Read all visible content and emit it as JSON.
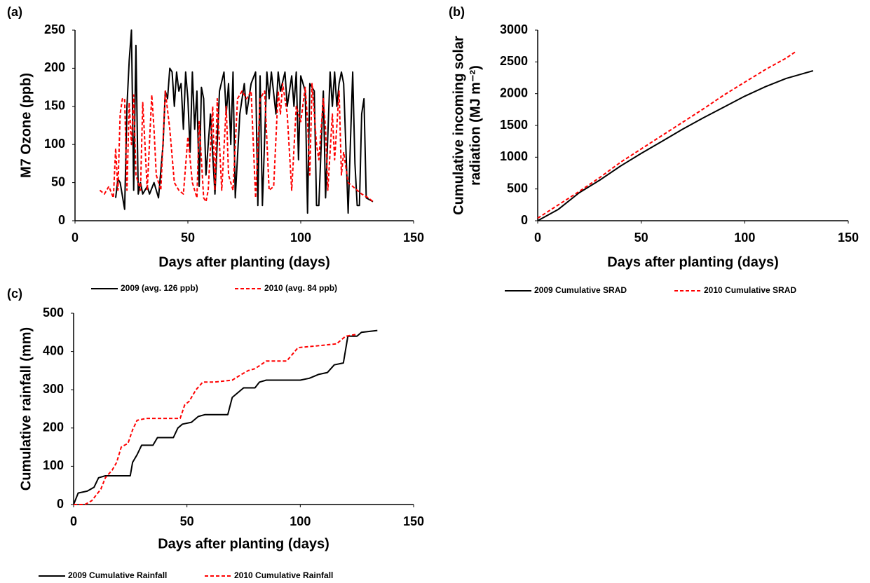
{
  "chart_data": [
    {
      "type": "line",
      "panel_label": "(a)",
      "xlabel": "Days after planting (days)",
      "ylabel": [
        "M7 Ozone (ppb)"
      ],
      "xlim": [
        0,
        150
      ],
      "xticks": [
        0,
        50,
        100,
        150
      ],
      "ylim": [
        0,
        250
      ],
      "yticks": [
        0,
        50,
        100,
        150,
        200,
        250
      ],
      "series": [
        {
          "name": "2009 (avg. 126 ppb)",
          "color": "#000000",
          "dashed": false,
          "x": [
            18,
            19,
            20,
            22,
            23,
            24,
            25,
            26,
            27,
            28,
            29,
            30,
            31,
            32,
            33,
            35,
            37,
            39,
            40,
            41,
            42,
            43,
            44,
            45,
            46,
            47,
            48,
            49,
            50,
            51,
            52,
            53,
            54,
            55,
            56,
            57,
            58,
            60,
            62,
            64,
            66,
            67,
            68,
            69,
            70,
            71,
            73,
            75,
            76,
            78,
            80,
            81,
            82,
            83,
            85,
            86,
            87,
            89,
            90,
            91,
            93,
            94,
            96,
            97,
            98,
            99,
            100,
            102,
            103,
            104,
            106,
            107,
            108,
            110,
            111,
            113,
            114,
            115,
            116,
            117,
            118,
            119,
            121,
            123,
            124,
            125,
            126,
            127,
            128,
            129,
            132
          ],
          "values": [
            30,
            55,
            50,
            15,
            150,
            210,
            250,
            40,
            230,
            35,
            50,
            35,
            40,
            45,
            35,
            50,
            30,
            100,
            170,
            160,
            200,
            195,
            150,
            195,
            170,
            180,
            120,
            195,
            160,
            90,
            195,
            120,
            170,
            45,
            175,
            160,
            60,
            140,
            35,
            170,
            195,
            140,
            180,
            100,
            195,
            30,
            140,
            180,
            140,
            180,
            195,
            20,
            190,
            20,
            195,
            160,
            195,
            140,
            195,
            170,
            195,
            150,
            190,
            150,
            195,
            80,
            190,
            170,
            10,
            180,
            170,
            20,
            20,
            170,
            30,
            195,
            150,
            195,
            150,
            180,
            195,
            180,
            10,
            195,
            75,
            20,
            20,
            140,
            160,
            30,
            25
          ]
        },
        {
          "name": "2010 (avg. 84 ppb)",
          "color": "#ff0000",
          "dashed": true,
          "x": [
            11,
            13,
            15,
            17,
            18,
            19,
            20,
            21,
            22,
            23,
            24,
            25,
            26,
            27,
            29,
            30,
            31,
            32,
            34,
            35,
            36,
            38,
            40,
            42,
            44,
            46,
            48,
            50,
            52,
            54,
            55,
            57,
            58,
            59,
            61,
            62,
            63,
            65,
            67,
            68,
            70,
            72,
            74,
            76,
            78,
            79,
            80,
            82,
            84,
            86,
            88,
            90,
            91,
            92,
            94,
            96,
            98,
            100,
            102,
            103,
            104,
            105,
            107,
            108,
            110,
            111,
            112,
            114,
            115,
            117,
            118,
            119,
            120,
            121,
            123,
            125,
            127,
            130,
            132
          ],
          "values": [
            40,
            35,
            45,
            30,
            95,
            40,
            140,
            160,
            160,
            40,
            155,
            100,
            165,
            60,
            40,
            155,
            100,
            40,
            165,
            120,
            60,
            40,
            170,
            120,
            50,
            40,
            35,
            110,
            50,
            30,
            130,
            30,
            25,
            40,
            150,
            40,
            160,
            40,
            150,
            60,
            40,
            160,
            170,
            160,
            170,
            100,
            30,
            160,
            170,
            40,
            45,
            170,
            140,
            180,
            140,
            40,
            150,
            130,
            175,
            130,
            60,
            180,
            100,
            80,
            160,
            120,
            40,
            140,
            80,
            170,
            60,
            90,
            70,
            50,
            45,
            40,
            35,
            30,
            25
          ]
        }
      ]
    },
    {
      "type": "line",
      "panel_label": "(b)",
      "xlabel": "Days after planting (days)",
      "ylabel": [
        "Cumulative incoming solar",
        "radiation (MJ m⁻²)"
      ],
      "xlim": [
        0,
        150
      ],
      "xticks": [
        0,
        50,
        100,
        150
      ],
      "ylim": [
        0,
        3000
      ],
      "yticks": [
        0,
        500,
        1000,
        1500,
        2000,
        2500,
        3000
      ],
      "series": [
        {
          "name": "2009 Cumulative SRAD",
          "color": "#000000",
          "dashed": false,
          "x": [
            0,
            10,
            20,
            30,
            40,
            50,
            60,
            70,
            80,
            90,
            100,
            110,
            120,
            133
          ],
          "values": [
            0,
            180,
            440,
            640,
            860,
            1060,
            1250,
            1440,
            1620,
            1790,
            1960,
            2110,
            2240,
            2360
          ]
        },
        {
          "name": "2010 Cumulative SRAD",
          "color": "#ff0000",
          "dashed": true,
          "x": [
            0,
            10,
            20,
            30,
            40,
            50,
            60,
            70,
            80,
            90,
            100,
            110,
            120,
            125
          ],
          "values": [
            40,
            250,
            460,
            680,
            920,
            1130,
            1340,
            1550,
            1760,
            1980,
            2180,
            2380,
            2560,
            2670
          ]
        }
      ]
    },
    {
      "type": "line",
      "panel_label": "(c)",
      "xlabel": "Days after planting (days)",
      "ylabel": [
        "Cumulative rainfall (mm)"
      ],
      "xlim": [
        0,
        150
      ],
      "xticks": [
        0,
        50,
        100,
        150
      ],
      "ylim": [
        0,
        500
      ],
      "yticks": [
        0,
        100,
        200,
        300,
        400,
        500
      ],
      "series": [
        {
          "name": "2009 Cumulative Rainfall",
          "color": "#000000",
          "dashed": false,
          "x": [
            0,
            2,
            6,
            9,
            11,
            14,
            25,
            26,
            28,
            30,
            35,
            37,
            44,
            46,
            48,
            52,
            55,
            58,
            68,
            70,
            75,
            80,
            82,
            85,
            100,
            104,
            108,
            112,
            115,
            119,
            121,
            125,
            127,
            134
          ],
          "values": [
            0,
            30,
            35,
            45,
            70,
            75,
            75,
            110,
            130,
            155,
            155,
            175,
            175,
            200,
            210,
            215,
            230,
            235,
            235,
            280,
            305,
            305,
            320,
            325,
            325,
            330,
            340,
            345,
            365,
            370,
            440,
            440,
            450,
            455
          ]
        },
        {
          "name": "2010 Cumulative Rainfall",
          "color": "#ff0000",
          "dashed": true,
          "x": [
            0,
            5,
            8,
            12,
            14,
            17,
            19,
            21,
            24,
            26,
            28,
            32,
            47,
            49,
            51,
            54,
            57,
            62,
            70,
            74,
            77,
            80,
            85,
            94,
            99,
            108,
            116,
            120,
            125
          ],
          "values": [
            0,
            0,
            10,
            40,
            70,
            90,
            110,
            150,
            160,
            195,
            220,
            225,
            225,
            260,
            270,
            300,
            320,
            320,
            325,
            340,
            350,
            355,
            375,
            375,
            410,
            415,
            420,
            440,
            445
          ]
        }
      ]
    }
  ]
}
